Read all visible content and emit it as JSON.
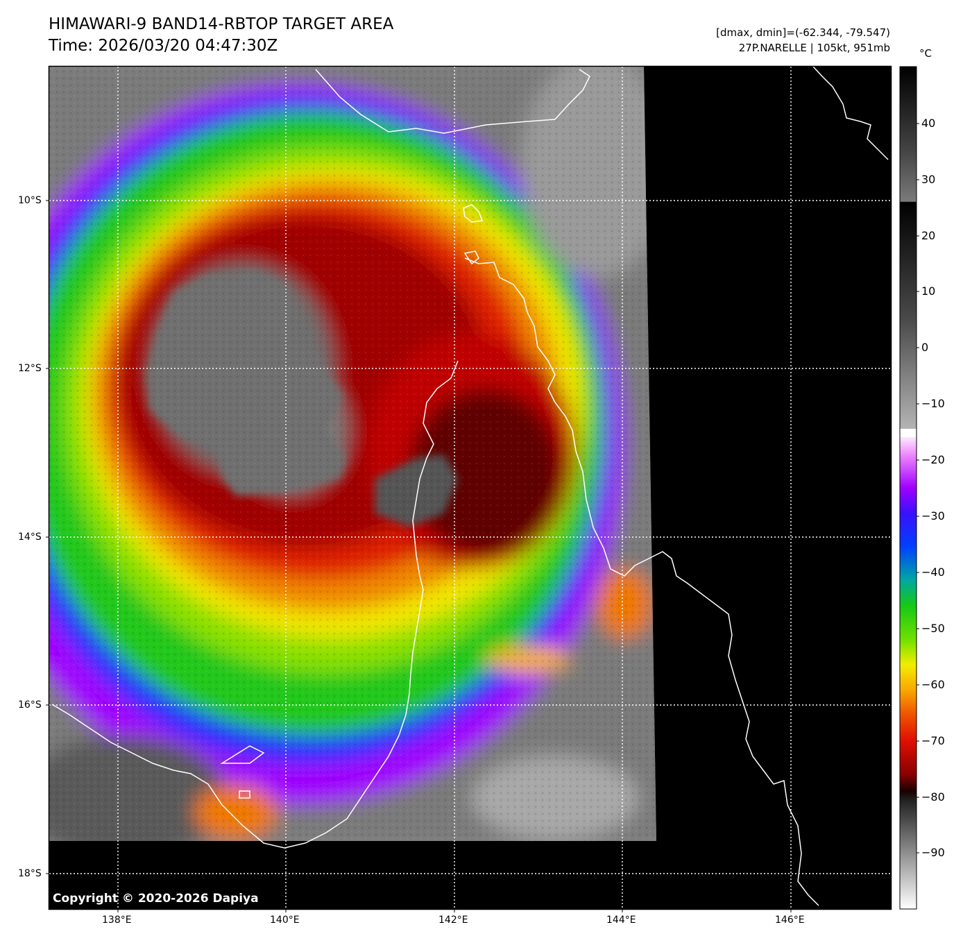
{
  "header": {
    "title_line1": "HIMAWARI-9 BAND14-RBTOP TARGET AREA",
    "title_line2": "Time: 2026/03/20 04:47:30Z",
    "info_line1": "[dmax, dmin]=(-62.344, -79.547)",
    "info_line2": "27P.NARELLE | 105kt, 951mb"
  },
  "colorbar": {
    "unit": "°C",
    "ticks": [
      "40",
      "30",
      "20",
      "10",
      "0",
      "−10",
      "−20",
      "−30",
      "−40",
      "−50",
      "−60",
      "−70",
      "−80",
      "−90"
    ]
  },
  "axes": {
    "lat_labels": [
      "10°S",
      "12°S",
      "14°S",
      "16°S",
      "18°S"
    ],
    "lon_labels": [
      "138°E",
      "140°E",
      "142°E",
      "144°E",
      "146°E"
    ]
  },
  "copyright": "Copyright © 2020-2026 Dapiya",
  "colors": {
    "eye_gray": "#6e6e6e",
    "deep_red": "#8c0000",
    "red": "#e01000",
    "orange": "#f07800",
    "yellow": "#f2e600",
    "green": "#22c81a",
    "blue": "#1a2cff",
    "purple": "#a000ff",
    "coast": "#ffffff",
    "no_data": "#000000"
  }
}
